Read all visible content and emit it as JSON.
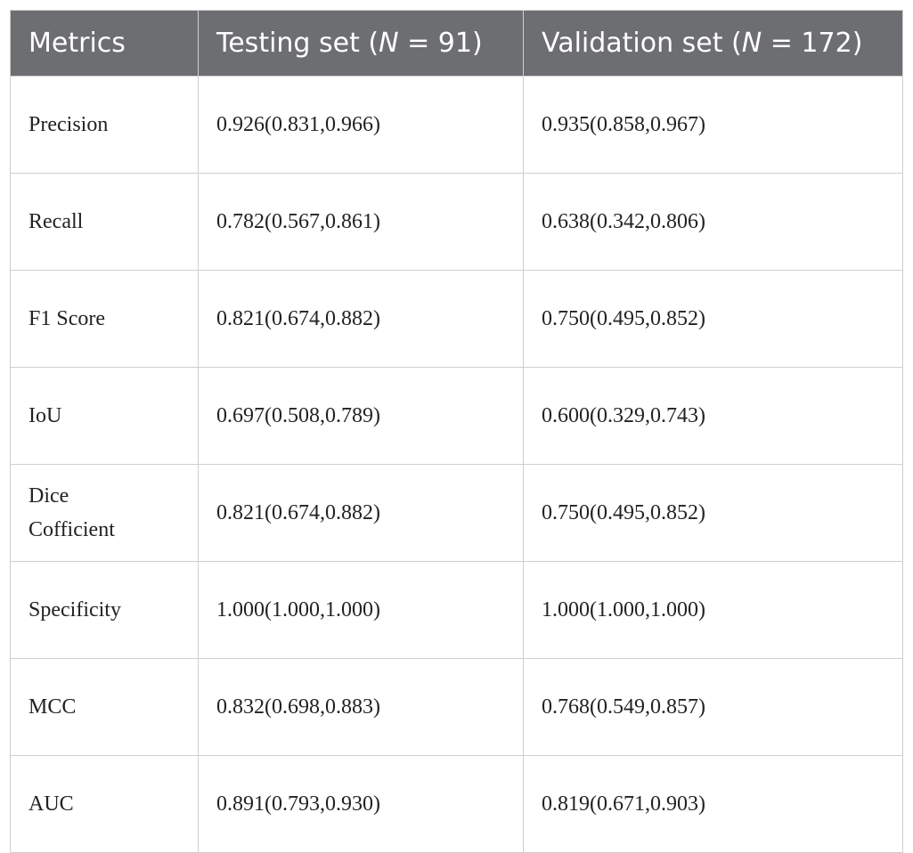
{
  "table": {
    "header": [
      {
        "text": "Metrics"
      },
      {
        "before": "Testing set (",
        "italic": "N",
        "after": " = 91)"
      },
      {
        "before": "Validation set (",
        "italic": "N",
        "after": " = 172)"
      }
    ],
    "rows": [
      [
        "Precision",
        "0.926(0.831,0.966)",
        "0.935(0.858,0.967)"
      ],
      [
        "Recall",
        "0.782(0.567,0.861)",
        "0.638(0.342,0.806)"
      ],
      [
        "F1 Score",
        "0.821(0.674,0.882)",
        "0.750(0.495,0.852)"
      ],
      [
        "IoU",
        "0.697(0.508,0.789)",
        "0.600(0.329,0.743)"
      ],
      [
        "Dice Cofficient",
        "0.821(0.674,0.882)",
        "0.750(0.495,0.852)"
      ],
      [
        "Specificity",
        "1.000(1.000,1.000)",
        "1.000(1.000,1.000)"
      ],
      [
        "MCC",
        "0.832(0.698,0.883)",
        "0.768(0.549,0.857)"
      ],
      [
        "AUC",
        "0.891(0.793,0.930)",
        "0.819(0.671,0.903)"
      ]
    ]
  }
}
